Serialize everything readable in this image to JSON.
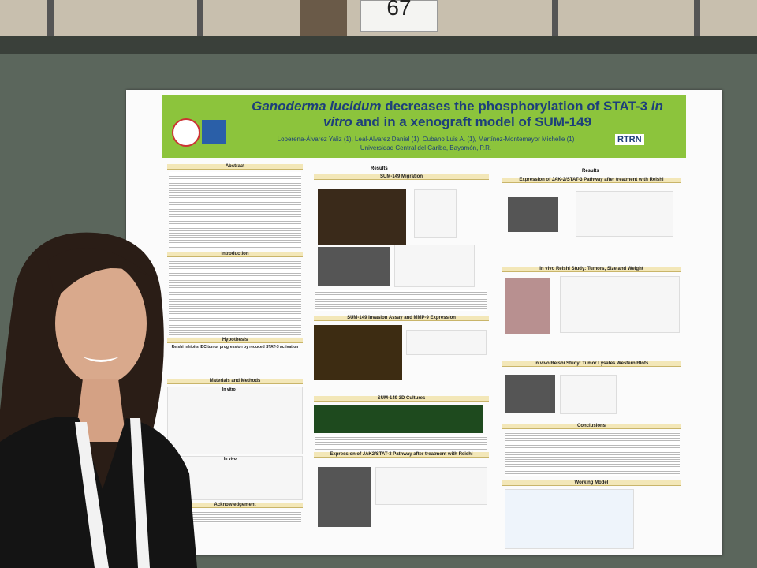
{
  "board_number": "67",
  "poster": {
    "title": [
      "Ganoderma lucidum",
      "decreases the phosphorylation of STAT-3",
      "in vitro",
      "and in a xenograft model of SUM-149"
    ],
    "authors": "Loperena-Álvarez Yaliz (1), Leal-Alvarez Daniel (1), Cubano Luis A. (1), Martínez-Montemayor Michelle (1)",
    "affiliation": "Universidad Central del Caribe, Bayamón, P.R.",
    "logo": "RTRN",
    "left": {
      "abstract": "Abstract",
      "introduction": "Introduction",
      "hypothesis": "Hypothesis",
      "hypothesis_statement": "Reishi inhibits IBC tumor progression by reduced STAT-3 activation",
      "methods": "Materials and Methods",
      "in_vitro": "In vitro",
      "in_vivo": "In vivo",
      "acknowledgement": "Acknowledgement"
    },
    "middle": {
      "results": "Results",
      "migration": "SUM-149 Migration",
      "invasion": "SUM-149 Invasion Assay and MMP-9 Expression",
      "cultures": "SUM-149 3D Cultures",
      "pathway": "Expression of JAK2/STAT-3 Pathway after treatment with Reishi"
    },
    "right": {
      "results": "Results",
      "pathway": "Expression of JAK-2/STAT-3 Pathway after treatment with Reishi",
      "tumors": "In vivo Reishi Study: Tumors, Size and Weight",
      "lysates": "In vivo Reishi Study: Tumor Lysates Western Blots",
      "conclusions": "Conclusions",
      "model": "Working Model"
    }
  }
}
